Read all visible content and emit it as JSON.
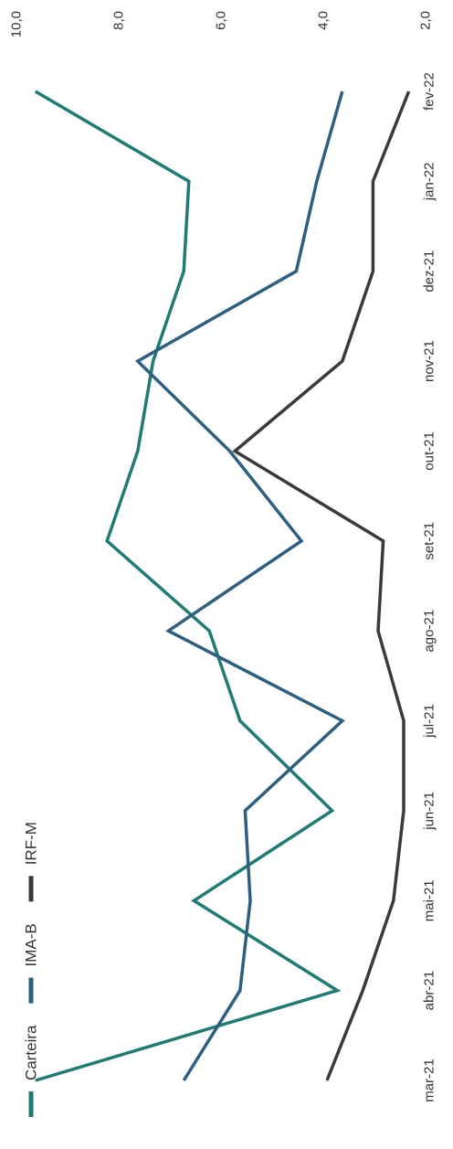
{
  "chart_data": {
    "type": "line",
    "orientation": "rotated-90-clockwise",
    "categories": [
      "mar-21",
      "abr-21",
      "mai-21",
      "jun-21",
      "jul-21",
      "ago-21",
      "set-21",
      "out-21",
      "nov-21",
      "dez-21",
      "jan-22",
      "fev-22"
    ],
    "ylim": [
      2.0,
      10.0
    ],
    "y_ticks": [
      "2,0",
      "4,0",
      "6,0",
      "8,0",
      "10,0"
    ],
    "grid": false,
    "legend_position": "bottom-left",
    "series": [
      {
        "name": "Carteira",
        "color": "#1f7b73",
        "values": [
          9.7,
          3.8,
          6.6,
          3.9,
          5.7,
          6.3,
          8.3,
          7.7,
          7.4,
          6.8,
          6.7,
          9.7
        ]
      },
      {
        "name": "IMA-B",
        "color": "#2e5f80",
        "values": [
          6.8,
          5.7,
          5.5,
          5.6,
          3.7,
          7.1,
          4.5,
          5.9,
          7.7,
          4.6,
          4.2,
          3.7
        ]
      },
      {
        "name": "IRF-M",
        "color": "#3a3a3a",
        "values": [
          4.0,
          3.3,
          2.7,
          2.5,
          2.5,
          3.0,
          2.9,
          5.8,
          3.7,
          3.1,
          3.1,
          2.4
        ]
      }
    ]
  }
}
